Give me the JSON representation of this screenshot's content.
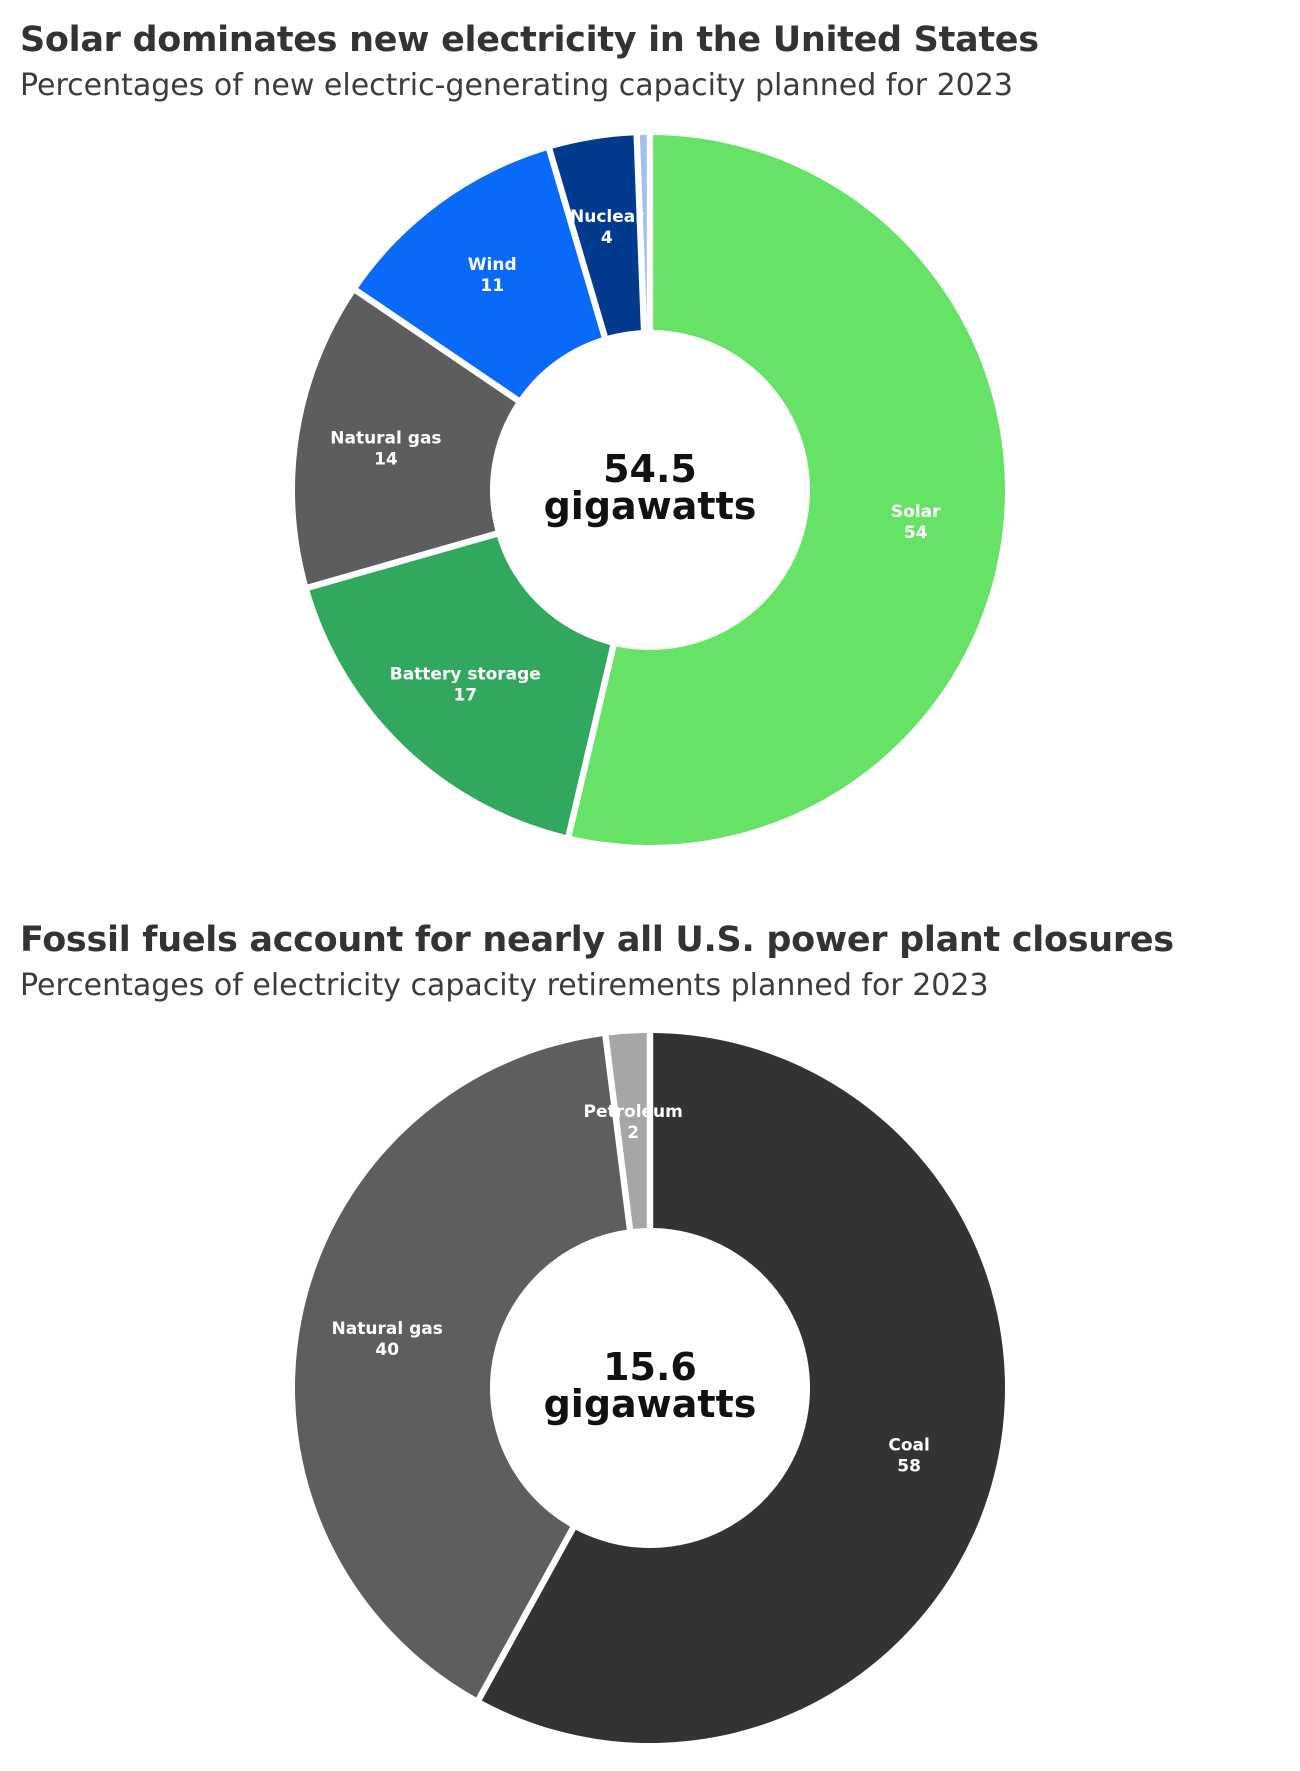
{
  "chart_data": [
    {
      "type": "donut",
      "title": "Solar dominates new electricity in the United States",
      "subtitle": "Percentages of new electric-generating capacity planned for 2023",
      "center_label": [
        "54.5",
        "gigawatts"
      ],
      "units": "percent",
      "slices": [
        {
          "name": "Solar",
          "value": 54,
          "color": "#66e366",
          "label_shown": true
        },
        {
          "name": "Battery storage",
          "value": 17,
          "color": "#32a85f",
          "label_shown": true
        },
        {
          "name": "Natural gas",
          "value": 14,
          "color": "#5d5d5d",
          "label_shown": true
        },
        {
          "name": "Wind",
          "value": 11,
          "color": "#0969f9",
          "label_shown": true
        },
        {
          "name": "Nuclear",
          "value": 4,
          "color": "#023a8e",
          "label_shown": true
        },
        {
          "name": "",
          "value": 0.6,
          "color": "#9fc1f0",
          "label_shown": false
        }
      ]
    },
    {
      "type": "donut",
      "title": "Fossil fuels account for nearly all U.S. power plant closures",
      "subtitle": "Percentages of electricity capacity retirements planned for 2023",
      "center_label": [
        "15.6",
        "gigawatts"
      ],
      "units": "percent",
      "slices": [
        {
          "name": "Coal",
          "value": 58,
          "color": "#333333",
          "label_shown": true
        },
        {
          "name": "Natural gas",
          "value": 40,
          "color": "#5e5e5e",
          "label_shown": true
        },
        {
          "name": "Petroleum",
          "value": 2,
          "color": "#a6a6a6",
          "label_shown": true
        }
      ]
    }
  ]
}
